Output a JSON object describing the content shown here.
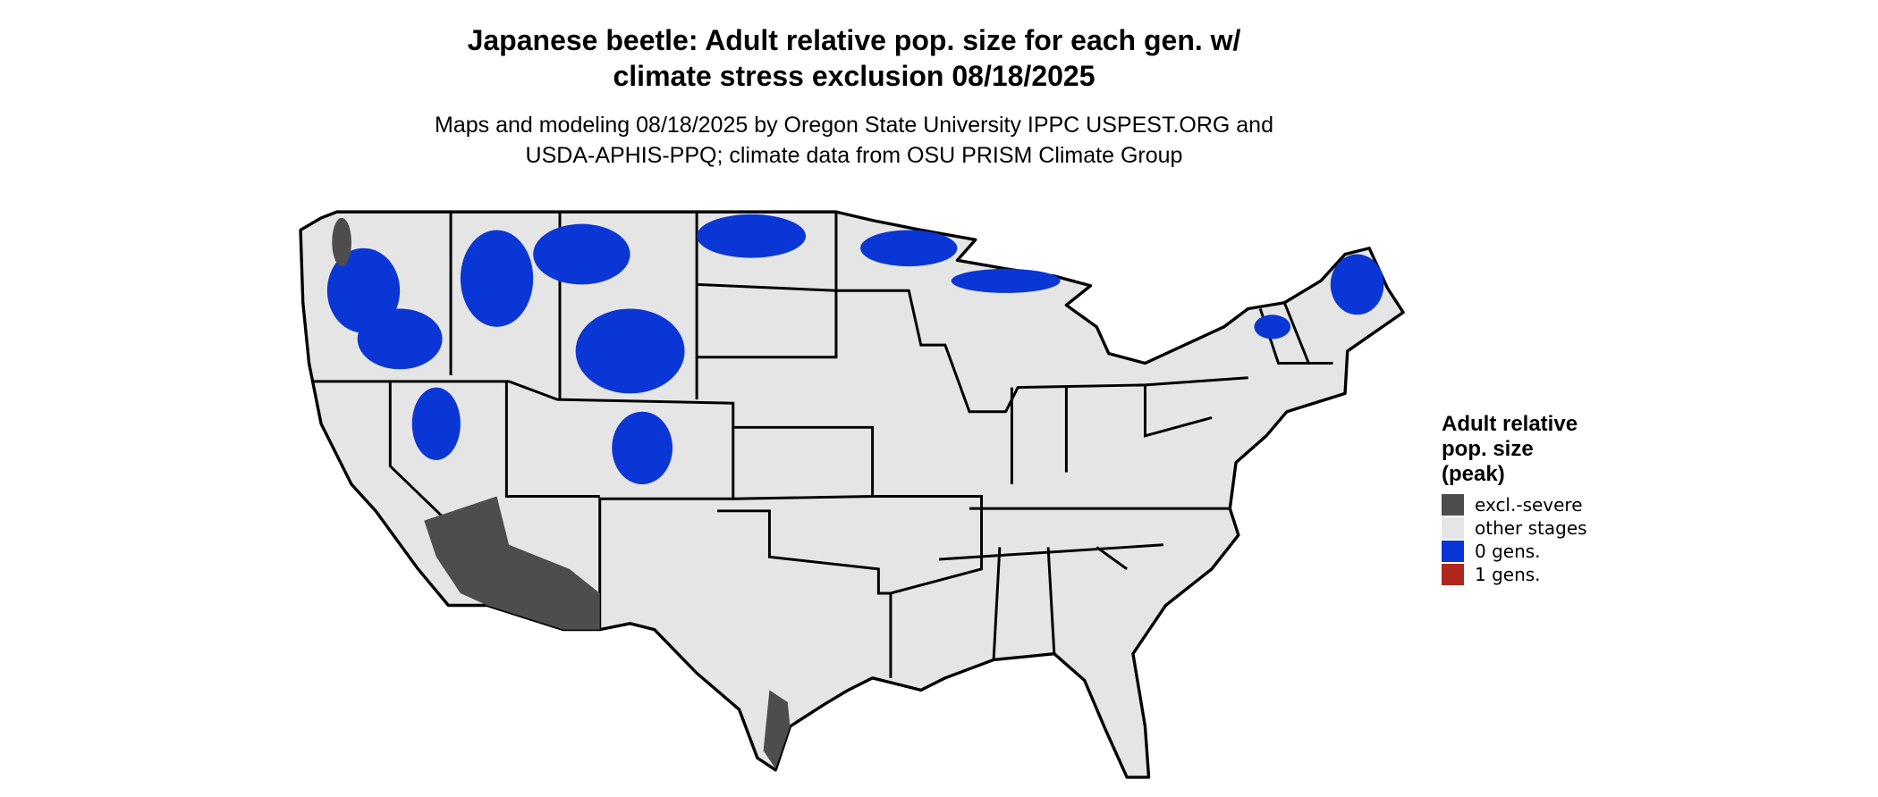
{
  "title": [
    "Japanese beetle: Adult relative pop. size for each gen. w/",
    "climate stress exclusion 08/18/2025"
  ],
  "subtitle": [
    "Maps and modeling 08/18/2025 by Oregon State University IPPC USPEST.ORG and",
    "USDA-APHIS-PPQ; climate data from OSU PRISM Climate Group"
  ],
  "legend": {
    "title": [
      "Adult relative",
      "pop. size",
      "(peak)"
    ],
    "items": [
      {
        "label": "excl.-severe",
        "color": "#4d4d4d"
      },
      {
        "label": "other stages",
        "color": "#e5e5e5"
      },
      {
        "label": "0 gens.",
        "color": "#0b36d6"
      },
      {
        "label": "1 gens.",
        "color": "#b2271d"
      }
    ]
  }
}
